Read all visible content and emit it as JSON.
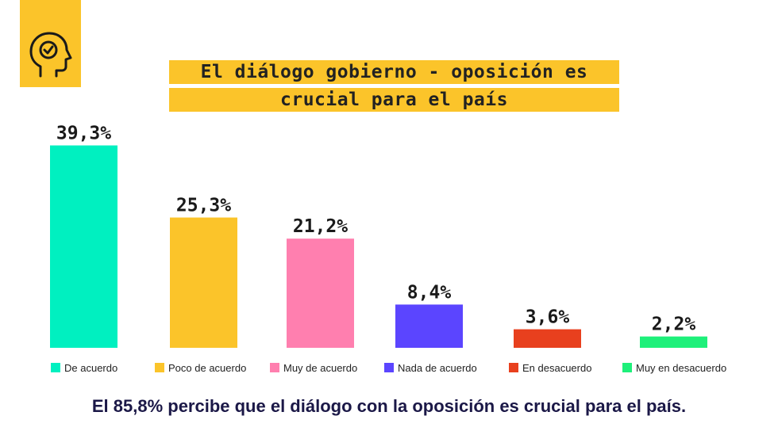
{
  "chart_data": {
    "type": "bar",
    "title": "El diálogo gobierno - oposición es crucial para el país",
    "title_lines": [
      "El diálogo gobierno - oposición es",
      "crucial para el país"
    ],
    "categories": [
      "De acuerdo",
      "Poco de acuerdo",
      "Muy de acuerdo",
      "Nada de acuerdo",
      "En desacuerdo",
      "Muy en desacuerdo"
    ],
    "values": [
      39.3,
      25.3,
      21.2,
      8.4,
      3.6,
      2.2
    ],
    "value_labels": [
      "39,3%",
      "25,3%",
      "21,2%",
      "8,4%",
      "3,6%",
      "2,2%"
    ],
    "colors": [
      "#00F0C0",
      "#FBC42A",
      "#FF7FAF",
      "#5B45FF",
      "#E8401E",
      "#1EF07A"
    ],
    "ylim": [
      0,
      40
    ],
    "grid": false,
    "legend_position": "bottom"
  },
  "footer_text": "El 85,8% percibe que el diálogo con la oposición es crucial para el país.",
  "icon": "head-check-icon"
}
